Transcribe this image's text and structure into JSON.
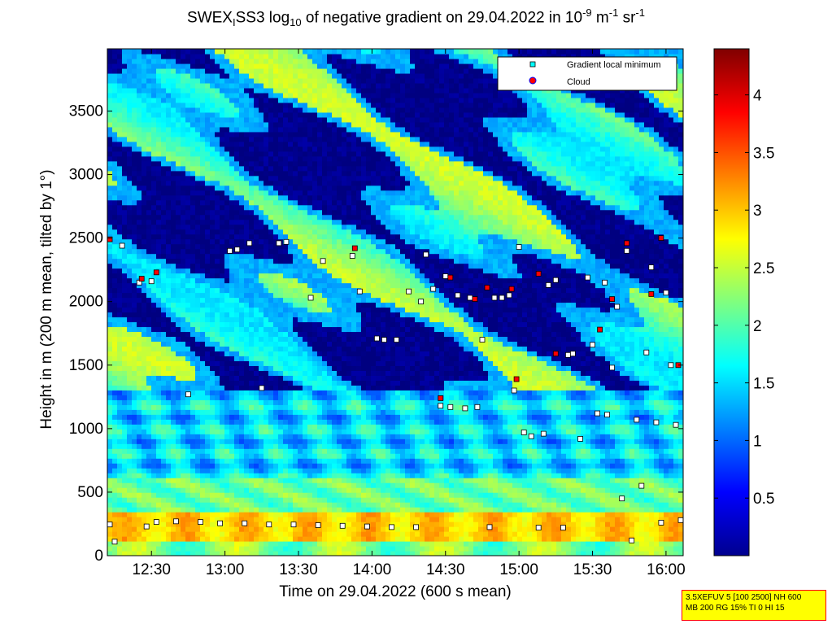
{
  "chart_data": {
    "type": "heatmap",
    "title": {
      "prefix": "SWEX",
      "sub1": "I",
      "mid": "SS3 log",
      "sub2": "10",
      "mid2": " of negative gradient on 29.04.2022 in 10",
      "exp1": "-9",
      "mid3": " m",
      "exp2": "-1",
      "mid4": " sr",
      "exp3": "-1"
    },
    "xlabel": "Time on 29.04.2022 (600 s mean)",
    "ylabel": "Height in m (200 m mean, tilted by 1°)",
    "x_ticks": [
      "12:30",
      "13:00",
      "13:30",
      "14:00",
      "14:30",
      "15:00",
      "15:30",
      "16:00"
    ],
    "x_tick_minutes": [
      750,
      780,
      810,
      840,
      870,
      900,
      930,
      960
    ],
    "xlim_minutes": [
      732,
      967
    ],
    "y_ticks": [
      "0",
      "500",
      "1000",
      "1500",
      "2000",
      "2500",
      "3000",
      "3500"
    ],
    "ylim": [
      0,
      3990
    ],
    "colorbar": {
      "range": [
        0,
        4.4
      ],
      "ticks": [
        0.5,
        1,
        1.5,
        2,
        2.5,
        3,
        3.5,
        4
      ],
      "tick_labels": [
        "0.5",
        "1",
        "1.5",
        "2",
        "2.5",
        "3",
        "3.5",
        "4"
      ],
      "colormap": "jet"
    },
    "legend": {
      "position": "top-right",
      "entries": [
        {
          "label": "Gradient local minimum",
          "marker": "square",
          "color": "#00ffff"
        },
        {
          "label": "Cloud",
          "marker": "circle",
          "color": "#ff0000"
        }
      ]
    },
    "gradient_minima": [
      {
        "x": 733,
        "y": 245
      },
      {
        "x": 735,
        "y": 110
      },
      {
        "x": 738,
        "y": 2440
      },
      {
        "x": 745,
        "y": 2150
      },
      {
        "x": 748,
        "y": 230
      },
      {
        "x": 750,
        "y": 2160
      },
      {
        "x": 752,
        "y": 265
      },
      {
        "x": 760,
        "y": 270
      },
      {
        "x": 765,
        "y": 1270
      },
      {
        "x": 770,
        "y": 265
      },
      {
        "x": 778,
        "y": 255
      },
      {
        "x": 782,
        "y": 2400
      },
      {
        "x": 785,
        "y": 2410
      },
      {
        "x": 788,
        "y": 255
      },
      {
        "x": 790,
        "y": 2460
      },
      {
        "x": 795,
        "y": 1320
      },
      {
        "x": 798,
        "y": 245
      },
      {
        "x": 802,
        "y": 2460
      },
      {
        "x": 805,
        "y": 2470
      },
      {
        "x": 808,
        "y": 245
      },
      {
        "x": 815,
        "y": 2030
      },
      {
        "x": 818,
        "y": 240
      },
      {
        "x": 820,
        "y": 2320
      },
      {
        "x": 828,
        "y": 235
      },
      {
        "x": 832,
        "y": 2360
      },
      {
        "x": 835,
        "y": 2080
      },
      {
        "x": 838,
        "y": 230
      },
      {
        "x": 842,
        "y": 1710
      },
      {
        "x": 845,
        "y": 1700
      },
      {
        "x": 848,
        "y": 225
      },
      {
        "x": 850,
        "y": 1700
      },
      {
        "x": 855,
        "y": 2080
      },
      {
        "x": 858,
        "y": 225
      },
      {
        "x": 860,
        "y": 2000
      },
      {
        "x": 862,
        "y": 2370
      },
      {
        "x": 865,
        "y": 2100
      },
      {
        "x": 868,
        "y": 1180
      },
      {
        "x": 870,
        "y": 2200
      },
      {
        "x": 872,
        "y": 1170
      },
      {
        "x": 875,
        "y": 2050
      },
      {
        "x": 878,
        "y": 1160
      },
      {
        "x": 880,
        "y": 2030
      },
      {
        "x": 883,
        "y": 1170
      },
      {
        "x": 885,
        "y": 1700
      },
      {
        "x": 888,
        "y": 225
      },
      {
        "x": 890,
        "y": 2030
      },
      {
        "x": 893,
        "y": 2030
      },
      {
        "x": 896,
        "y": 2050
      },
      {
        "x": 898,
        "y": 1300
      },
      {
        "x": 900,
        "y": 2430
      },
      {
        "x": 902,
        "y": 970
      },
      {
        "x": 905,
        "y": 940
      },
      {
        "x": 908,
        "y": 220
      },
      {
        "x": 910,
        "y": 960
      },
      {
        "x": 912,
        "y": 2130
      },
      {
        "x": 915,
        "y": 2170
      },
      {
        "x": 918,
        "y": 220
      },
      {
        "x": 920,
        "y": 1580
      },
      {
        "x": 922,
        "y": 1590
      },
      {
        "x": 925,
        "y": 920
      },
      {
        "x": 928,
        "y": 2190
      },
      {
        "x": 930,
        "y": 1660
      },
      {
        "x": 932,
        "y": 1120
      },
      {
        "x": 935,
        "y": 2150
      },
      {
        "x": 936,
        "y": 1110
      },
      {
        "x": 938,
        "y": 1480
      },
      {
        "x": 940,
        "y": 1960
      },
      {
        "x": 942,
        "y": 450
      },
      {
        "x": 944,
        "y": 2400
      },
      {
        "x": 946,
        "y": 120
      },
      {
        "x": 948,
        "y": 1070
      },
      {
        "x": 950,
        "y": 550
      },
      {
        "x": 952,
        "y": 1600
      },
      {
        "x": 954,
        "y": 2270
      },
      {
        "x": 956,
        "y": 1050
      },
      {
        "x": 958,
        "y": 260
      },
      {
        "x": 960,
        "y": 2070
      },
      {
        "x": 962,
        "y": 1500
      },
      {
        "x": 964,
        "y": 1030
      },
      {
        "x": 966,
        "y": 280
      }
    ],
    "clouds": [
      {
        "x": 733,
        "y": 2490
      },
      {
        "x": 746,
        "y": 2180
      },
      {
        "x": 752,
        "y": 2230
      },
      {
        "x": 833,
        "y": 2420
      },
      {
        "x": 868,
        "y": 1240
      },
      {
        "x": 872,
        "y": 2190
      },
      {
        "x": 882,
        "y": 2020
      },
      {
        "x": 887,
        "y": 2110
      },
      {
        "x": 897,
        "y": 2100
      },
      {
        "x": 899,
        "y": 1390
      },
      {
        "x": 908,
        "y": 2220
      },
      {
        "x": 915,
        "y": 1590
      },
      {
        "x": 933,
        "y": 1780
      },
      {
        "x": 938,
        "y": 2020
      },
      {
        "x": 944,
        "y": 2460
      },
      {
        "x": 954,
        "y": 2060
      },
      {
        "x": 958,
        "y": 2500
      },
      {
        "x": 965,
        "y": 1500
      }
    ]
  },
  "info_box": {
    "line1": "3.5XEFUV 5 [100 2500] NH 600",
    "line2": "MB 200 RG 15% TI 0 HI 15"
  }
}
